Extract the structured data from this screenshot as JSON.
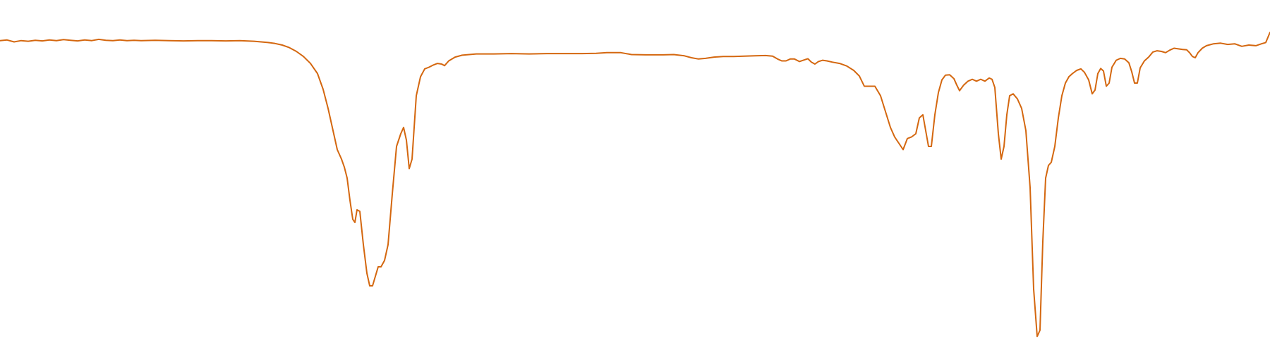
{
  "chart_data": {
    "type": "line",
    "title": "",
    "xlabel": "",
    "ylabel": "",
    "grid": false,
    "axes_visible": false,
    "xlim": [
      0,
      1800
    ],
    "ylim": [
      0,
      1
    ],
    "series": [
      {
        "color": "#d4670f",
        "points": [
          [
            0,
            0.934
          ],
          [
            10,
            0.936
          ],
          [
            20,
            0.93
          ],
          [
            30,
            0.934
          ],
          [
            40,
            0.932
          ],
          [
            50,
            0.935
          ],
          [
            60,
            0.933
          ],
          [
            70,
            0.936
          ],
          [
            80,
            0.934
          ],
          [
            90,
            0.937
          ],
          [
            100,
            0.935
          ],
          [
            110,
            0.933
          ],
          [
            120,
            0.936
          ],
          [
            130,
            0.934
          ],
          [
            140,
            0.938
          ],
          [
            150,
            0.935
          ],
          [
            160,
            0.934
          ],
          [
            170,
            0.936
          ],
          [
            180,
            0.934
          ],
          [
            190,
            0.935
          ],
          [
            200,
            0.934
          ],
          [
            220,
            0.935
          ],
          [
            240,
            0.934
          ],
          [
            260,
            0.933
          ],
          [
            280,
            0.934
          ],
          [
            300,
            0.934
          ],
          [
            320,
            0.933
          ],
          [
            340,
            0.934
          ],
          [
            360,
            0.932
          ],
          [
            370,
            0.93
          ],
          [
            380,
            0.928
          ],
          [
            390,
            0.925
          ],
          [
            400,
            0.92
          ],
          [
            410,
            0.912
          ],
          [
            420,
            0.9
          ],
          [
            430,
            0.884
          ],
          [
            440,
            0.862
          ],
          [
            450,
            0.83
          ],
          [
            458,
            0.78
          ],
          [
            465,
            0.72
          ],
          [
            472,
            0.65
          ],
          [
            478,
            0.59
          ],
          [
            484,
            0.56
          ],
          [
            488,
            0.535
          ],
          [
            492,
            0.5
          ],
          [
            496,
            0.43
          ],
          [
            500,
            0.37
          ],
          [
            503,
            0.36
          ],
          [
            506,
            0.4
          ],
          [
            510,
            0.395
          ],
          [
            515,
            0.29
          ],
          [
            520,
            0.2
          ],
          [
            524,
            0.16
          ],
          [
            528,
            0.16
          ],
          [
            532,
            0.19
          ],
          [
            536,
            0.22
          ],
          [
            540,
            0.22
          ],
          [
            545,
            0.24
          ],
          [
            550,
            0.29
          ],
          [
            556,
            0.45
          ],
          [
            562,
            0.6
          ],
          [
            568,
            0.64
          ],
          [
            572,
            0.66
          ],
          [
            576,
            0.62
          ],
          [
            580,
            0.53
          ],
          [
            584,
            0.56
          ],
          [
            590,
            0.76
          ],
          [
            596,
            0.82
          ],
          [
            602,
            0.845
          ],
          [
            608,
            0.85
          ],
          [
            614,
            0.857
          ],
          [
            620,
            0.862
          ],
          [
            626,
            0.86
          ],
          [
            630,
            0.855
          ],
          [
            636,
            0.87
          ],
          [
            645,
            0.882
          ],
          [
            655,
            0.888
          ],
          [
            665,
            0.89
          ],
          [
            675,
            0.892
          ],
          [
            700,
            0.892
          ],
          [
            725,
            0.893
          ],
          [
            750,
            0.892
          ],
          [
            775,
            0.893
          ],
          [
            800,
            0.893
          ],
          [
            825,
            0.893
          ],
          [
            845,
            0.894
          ],
          [
            860,
            0.896
          ],
          [
            880,
            0.896
          ],
          [
            895,
            0.89
          ],
          [
            915,
            0.889
          ],
          [
            940,
            0.889
          ],
          [
            955,
            0.89
          ],
          [
            970,
            0.886
          ],
          [
            980,
            0.88
          ],
          [
            990,
            0.876
          ],
          [
            1000,
            0.878
          ],
          [
            1012,
            0.882
          ],
          [
            1025,
            0.884
          ],
          [
            1040,
            0.884
          ],
          [
            1055,
            0.885
          ],
          [
            1070,
            0.886
          ],
          [
            1085,
            0.887
          ],
          [
            1095,
            0.885
          ],
          [
            1102,
            0.876
          ],
          [
            1108,
            0.87
          ],
          [
            1114,
            0.87
          ],
          [
            1120,
            0.876
          ],
          [
            1126,
            0.876
          ],
          [
            1133,
            0.868
          ],
          [
            1140,
            0.873
          ],
          [
            1145,
            0.877
          ],
          [
            1150,
            0.866
          ],
          [
            1155,
            0.86
          ],
          [
            1160,
            0.868
          ],
          [
            1166,
            0.872
          ],
          [
            1172,
            0.87
          ],
          [
            1180,
            0.866
          ],
          [
            1190,
            0.862
          ],
          [
            1200,
            0.854
          ],
          [
            1210,
            0.84
          ],
          [
            1218,
            0.822
          ],
          [
            1225,
            0.79
          ],
          [
            1232,
            0.79
          ],
          [
            1240,
            0.79
          ],
          [
            1248,
            0.76
          ],
          [
            1255,
            0.71
          ],
          [
            1262,
            0.66
          ],
          [
            1268,
            0.63
          ],
          [
            1274,
            0.61
          ],
          [
            1280,
            0.59
          ],
          [
            1286,
            0.625
          ],
          [
            1292,
            0.63
          ],
          [
            1298,
            0.64
          ],
          [
            1303,
            0.69
          ],
          [
            1308,
            0.7
          ],
          [
            1312,
            0.65
          ],
          [
            1316,
            0.6
          ],
          [
            1320,
            0.6
          ],
          [
            1325,
            0.7
          ],
          [
            1330,
            0.77
          ],
          [
            1335,
            0.81
          ],
          [
            1340,
            0.825
          ],
          [
            1346,
            0.826
          ],
          [
            1352,
            0.814
          ],
          [
            1356,
            0.794
          ],
          [
            1360,
            0.776
          ],
          [
            1366,
            0.794
          ],
          [
            1372,
            0.806
          ],
          [
            1378,
            0.812
          ],
          [
            1384,
            0.806
          ],
          [
            1390,
            0.812
          ],
          [
            1396,
            0.806
          ],
          [
            1402,
            0.816
          ],
          [
            1406,
            0.812
          ],
          [
            1410,
            0.786
          ],
          [
            1415,
            0.64
          ],
          [
            1419,
            0.56
          ],
          [
            1423,
            0.6
          ],
          [
            1427,
            0.7
          ],
          [
            1431,
            0.76
          ],
          [
            1436,
            0.766
          ],
          [
            1442,
            0.75
          ],
          [
            1448,
            0.72
          ],
          [
            1454,
            0.65
          ],
          [
            1460,
            0.47
          ],
          [
            1465,
            0.15
          ],
          [
            1470,
            0.0
          ],
          [
            1474,
            0.02
          ],
          [
            1478,
            0.3
          ],
          [
            1482,
            0.5
          ],
          [
            1486,
            0.54
          ],
          [
            1490,
            0.55
          ],
          [
            1495,
            0.6
          ],
          [
            1500,
            0.69
          ],
          [
            1505,
            0.76
          ],
          [
            1510,
            0.8
          ],
          [
            1515,
            0.82
          ],
          [
            1520,
            0.83
          ],
          [
            1526,
            0.84
          ],
          [
            1532,
            0.845
          ],
          [
            1537,
            0.834
          ],
          [
            1543,
            0.81
          ],
          [
            1548,
            0.766
          ],
          [
            1552,
            0.778
          ],
          [
            1556,
            0.83
          ],
          [
            1560,
            0.846
          ],
          [
            1564,
            0.838
          ],
          [
            1568,
            0.79
          ],
          [
            1572,
            0.8
          ],
          [
            1576,
            0.85
          ],
          [
            1582,
            0.872
          ],
          [
            1588,
            0.878
          ],
          [
            1594,
            0.876
          ],
          [
            1600,
            0.864
          ],
          [
            1604,
            0.836
          ],
          [
            1608,
            0.8
          ],
          [
            1612,
            0.8
          ],
          [
            1616,
            0.848
          ],
          [
            1622,
            0.87
          ],
          [
            1628,
            0.882
          ],
          [
            1634,
            0.898
          ],
          [
            1640,
            0.902
          ],
          [
            1646,
            0.9
          ],
          [
            1652,
            0.896
          ],
          [
            1658,
            0.904
          ],
          [
            1664,
            0.91
          ],
          [
            1670,
            0.908
          ],
          [
            1676,
            0.906
          ],
          [
            1682,
            0.905
          ],
          [
            1686,
            0.896
          ],
          [
            1690,
            0.884
          ],
          [
            1694,
            0.88
          ],
          [
            1698,
            0.896
          ],
          [
            1704,
            0.91
          ],
          [
            1710,
            0.918
          ],
          [
            1720,
            0.924
          ],
          [
            1730,
            0.926
          ],
          [
            1740,
            0.922
          ],
          [
            1750,
            0.924
          ],
          [
            1760,
            0.916
          ],
          [
            1770,
            0.92
          ],
          [
            1780,
            0.918
          ],
          [
            1788,
            0.924
          ],
          [
            1794,
            0.928
          ],
          [
            1800,
            0.96
          ]
        ]
      }
    ]
  }
}
